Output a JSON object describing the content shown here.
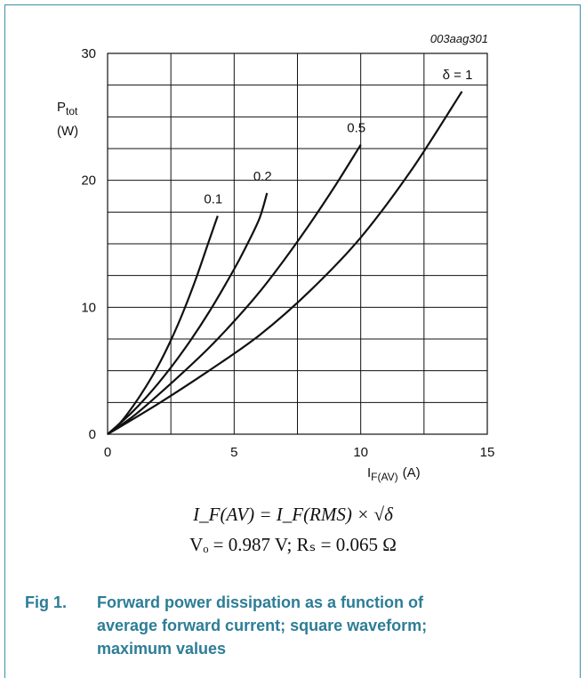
{
  "chart_data": {
    "type": "line",
    "code": "003aag301",
    "ylabel_main": "P",
    "ylabel_sub": "tot",
    "ylabel_unit": "(W)",
    "xlabel_main": "I",
    "xlabel_sub": "F(AV)",
    "xlabel_unit": "(A)",
    "xlim": [
      0,
      15
    ],
    "ylim": [
      0,
      30
    ],
    "xticks": [
      0,
      5,
      10,
      15
    ],
    "yticks": [
      0,
      10,
      20,
      30
    ],
    "grid": true,
    "series": [
      {
        "name": "0.1",
        "x": [
          0,
          0.5,
          1.0,
          1.5,
          2.0,
          2.5,
          3.0,
          3.5,
          4.0,
          4.35
        ],
        "y": [
          0,
          0.9,
          2.2,
          3.7,
          5.4,
          7.4,
          9.7,
          12.3,
          15.2,
          17.2
        ]
      },
      {
        "name": "0.2",
        "x": [
          0,
          1.0,
          2.0,
          3.0,
          4.0,
          5.0,
          5.5,
          6.0,
          6.3
        ],
        "y": [
          0,
          1.8,
          4.0,
          6.6,
          9.6,
          13.0,
          14.9,
          17.0,
          19.0
        ]
      },
      {
        "name": "0.5",
        "x": [
          0,
          1.0,
          2.0,
          3.0,
          4.0,
          5.0,
          6.0,
          7.0,
          8.0,
          9.0,
          10.0
        ],
        "y": [
          0,
          1.4,
          3.1,
          4.9,
          6.8,
          8.9,
          11.2,
          13.8,
          16.6,
          19.6,
          22.8
        ]
      },
      {
        "name": "δ = 1",
        "x": [
          0,
          2.0,
          4.0,
          6.0,
          8.0,
          10.0,
          12.0,
          14.0
        ],
        "y": [
          0,
          2.4,
          5.0,
          7.8,
          11.3,
          15.5,
          20.8,
          27.0
        ]
      }
    ]
  },
  "formula_line1": "I_F(AV) = I_F(RMS) × √δ",
  "formula_line2": "Vₒ = 0.987 V; Rₛ = 0.065 Ω",
  "caption": {
    "number": "Fig 1.",
    "text": "Forward power dissipation as a function of average forward current; square waveform; maximum values"
  }
}
